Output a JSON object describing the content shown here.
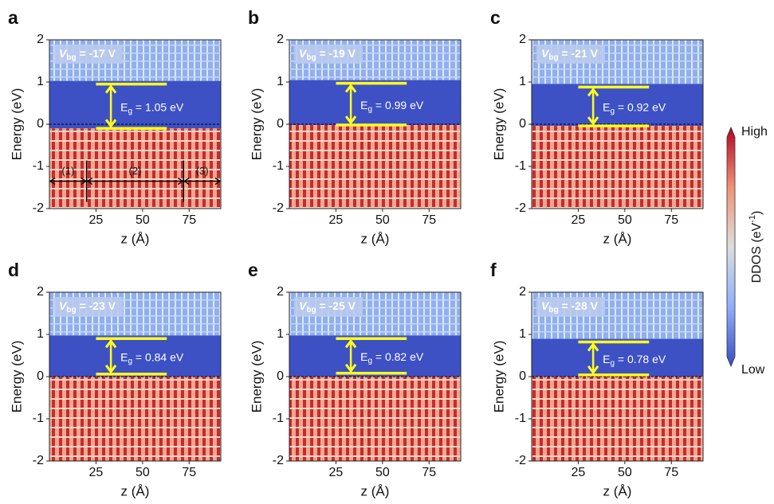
{
  "labels": {
    "gate_symbol": "V",
    "gate_subscript": "bg",
    "gap_symbol": "E",
    "gap_subscript": "g"
  },
  "colorbar": {
    "title": "DDOS (eV",
    "title_sup": "-1",
    "title_end": ")",
    "high": "High",
    "low": "Low"
  },
  "chart_data": [
    {
      "type": "heatmap",
      "panel": "a",
      "gate_label": " = -17 V",
      "gap_label": " = 1.05 eV",
      "band_edges": {
        "vbm": -0.1,
        "cbm": 0.95
      },
      "xlabel": "z (Å)",
      "ylabel": "Energy (eV)",
      "xlim": [
        0,
        92
      ],
      "xticks": [
        25,
        50,
        75
      ],
      "ylim": [
        -2,
        2
      ],
      "yticks": [
        -2,
        -1,
        0,
        1,
        2
      ],
      "annotation_energy": -1.35,
      "regions": [
        {
          "label": "(1)",
          "z": [
            0,
            20
          ]
        },
        {
          "label": "(2)",
          "z": [
            20,
            72
          ]
        },
        {
          "label": "(3)",
          "z": [
            72,
            92
          ]
        }
      ]
    },
    {
      "type": "heatmap",
      "panel": "b",
      "gate_label": " = -19 V",
      "gap_label": " = 0.99 eV",
      "band_edges": {
        "vbm": -0.02,
        "cbm": 0.97
      },
      "xlabel": "z (Å)",
      "ylabel": "Energy (eV)",
      "xlim": [
        0,
        92
      ],
      "xticks": [
        25,
        50,
        75
      ],
      "ylim": [
        -2,
        2
      ],
      "yticks": [
        -2,
        -1,
        0,
        1,
        2
      ]
    },
    {
      "type": "heatmap",
      "panel": "c",
      "gate_label": " = -21 V",
      "gap_label": " = 0.92 eV",
      "band_edges": {
        "vbm": -0.04,
        "cbm": 0.88
      },
      "xlabel": "z (Å)",
      "ylabel": "Energy (eV)",
      "xlim": [
        0,
        92
      ],
      "xticks": [
        25,
        50,
        75
      ],
      "ylim": [
        -2,
        2
      ],
      "yticks": [
        -2,
        -1,
        0,
        1,
        2
      ]
    },
    {
      "type": "heatmap",
      "panel": "d",
      "gate_label": " = -23 V",
      "gap_label": " = 0.84 eV",
      "band_edges": {
        "vbm": 0.06,
        "cbm": 0.9
      },
      "xlabel": "z (Å)",
      "ylabel": "Energy (eV)",
      "xlim": [
        0,
        92
      ],
      "xticks": [
        25,
        50,
        75
      ],
      "ylim": [
        -2,
        2
      ],
      "yticks": [
        -2,
        -1,
        0,
        1,
        2
      ]
    },
    {
      "type": "heatmap",
      "panel": "e",
      "gate_label": " = -25 V",
      "gap_label": " = 0.82 eV",
      "band_edges": {
        "vbm": 0.08,
        "cbm": 0.9
      },
      "xlabel": "z (Å)",
      "ylabel": "Energy (eV)",
      "xlim": [
        0,
        92
      ],
      "xticks": [
        25,
        50,
        75
      ],
      "ylim": [
        -2,
        2
      ],
      "yticks": [
        -2,
        -1,
        0,
        1,
        2
      ]
    },
    {
      "type": "heatmap",
      "panel": "f",
      "gate_label": " = -28 V",
      "gap_label": " = 0.78 eV",
      "band_edges": {
        "vbm": 0.04,
        "cbm": 0.82
      },
      "xlabel": "z (Å)",
      "ylabel": "Energy (eV)",
      "xlim": [
        0,
        92
      ],
      "xticks": [
        25,
        50,
        75
      ],
      "ylim": [
        -2,
        2
      ],
      "yticks": [
        -2,
        -1,
        0,
        1,
        2
      ]
    }
  ]
}
